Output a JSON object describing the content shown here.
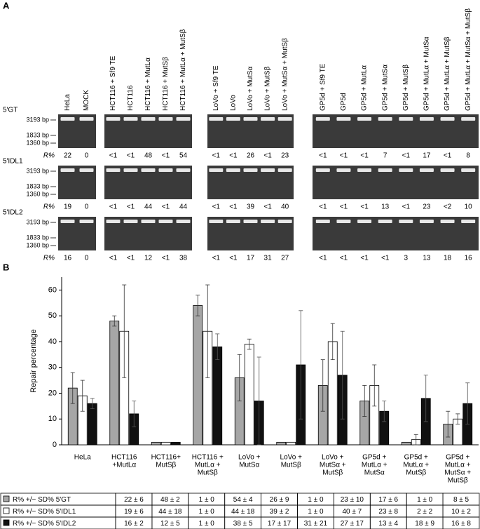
{
  "panel_a": {
    "label": "A",
    "lane_groups": [
      [
        "HeLa",
        "MOCK"
      ],
      [
        "HCT116 + Sf9 TE",
        "HCT116",
        "HCT116 + MutLα",
        "HCT116 + MutSβ",
        "HCT116 + MutLα + MutSβ"
      ],
      [
        "LoVo + Sf9 TE",
        "LoVo",
        "LoVo + MutSα",
        "LoVo + MutSβ",
        "LoVo + MutSα + MutSβ"
      ],
      [
        "GP5d + Sf9 TE",
        "GP5d",
        "GP5d + MutLα",
        "GP5d + MutSα",
        "GP5d + MutSβ",
        "GP5d + MutLα + MutSα",
        "GP5d + MutLα + MutSβ",
        "GP5d + MutLα + MutSα + MutSβ"
      ]
    ],
    "rows": [
      {
        "label": "5′GT",
        "markers": [
          "3193 bp",
          "1833 bp",
          "1360 bp"
        ],
        "r_label": "R%",
        "values": [
          [
            "22",
            "0"
          ],
          [
            "<1",
            "<1",
            "48",
            "<1",
            "54"
          ],
          [
            "<1",
            "<1",
            "26",
            "<1",
            "23"
          ],
          [
            "<1",
            "<1",
            "<1",
            "7",
            "<1",
            "17",
            "<1",
            "8"
          ]
        ]
      },
      {
        "label": "5′IDL1",
        "markers": [
          "3193 bp",
          "1833 bp",
          "1360 bp"
        ],
        "r_label": "R%",
        "values": [
          [
            "19",
            "0"
          ],
          [
            "<1",
            "<1",
            "44",
            "<1",
            "44"
          ],
          [
            "<1",
            "<1",
            "39",
            "<1",
            "40"
          ],
          [
            "<1",
            "<1",
            "<1",
            "13",
            "<1",
            "23",
            "<2",
            "10"
          ]
        ]
      },
      {
        "label": "5′IDL2",
        "markers": [
          "3193 bp",
          "1833 bp",
          "1360 bp"
        ],
        "r_label": "R%",
        "values": [
          [
            "16",
            "0"
          ],
          [
            "<1",
            "<1",
            "12",
            "<1",
            "38"
          ],
          [
            "<1",
            "<1",
            "17",
            "31",
            "27"
          ],
          [
            "<1",
            "<1",
            "<1",
            "<1",
            "3",
            "13",
            "18",
            "16"
          ]
        ]
      }
    ]
  },
  "panel_b_label": "B",
  "chart_data": {
    "type": "bar",
    "ylabel": "Repair percentage",
    "categories": [
      [
        "HeLa"
      ],
      [
        "HCT116",
        "+MutLα"
      ],
      [
        "HCT116+",
        "MutSβ"
      ],
      [
        "HCT116 +",
        "MutLα +",
        "MutSβ"
      ],
      [
        "LoVo +",
        "MutSα"
      ],
      [
        "LoVo +",
        "MutSβ"
      ],
      [
        "LoVo +",
        "MutSα +",
        "MutSβ"
      ],
      [
        "GP5d +",
        "MutLα +",
        "MutSα"
      ],
      [
        "GP5d +",
        "MutLα +",
        "MutSβ"
      ],
      [
        "GP5d +",
        "MutLα +",
        "MutSα +",
        "MutSβ"
      ]
    ],
    "series": [
      {
        "name": "R% +/− SD% 5′GT",
        "color": "#a6a6a6",
        "values": [
          22,
          48,
          1,
          54,
          26,
          1,
          23,
          17,
          1,
          8
        ],
        "errors": [
          6,
          2,
          0,
          4,
          9,
          0,
          10,
          6,
          0,
          5
        ]
      },
      {
        "name": "R% +/− SD% 5′IDL1",
        "color": "#ffffff",
        "values": [
          19,
          44,
          1,
          44,
          39,
          1,
          40,
          23,
          2,
          10
        ],
        "errors": [
          6,
          18,
          0,
          18,
          2,
          0,
          7,
          8,
          2,
          2
        ]
      },
      {
        "name": "R% +/− SD% 5′IDL2",
        "color": "#111111",
        "values": [
          16,
          12,
          1,
          38,
          17,
          31,
          27,
          13,
          18,
          16
        ],
        "errors": [
          2,
          5,
          0,
          5,
          17,
          21,
          17,
          4,
          9,
          8
        ]
      }
    ],
    "ylim": [
      0,
      65
    ],
    "yticks": [
      0,
      10,
      20,
      30,
      40,
      50,
      60
    ]
  },
  "table": [
    [
      "22 ± 6",
      "48 ± 2",
      "1 ± 0",
      "54 ± 4",
      "26 ± 9",
      "1 ± 0",
      "23 ± 10",
      "17 ± 6",
      "1 ± 0",
      "8 ± 5"
    ],
    [
      "19 ± 6",
      "44 ± 18",
      "1 ± 0",
      "44 ± 18",
      "39 ± 2",
      "1 ± 0",
      "40 ± 7",
      "23 ± 8",
      "2 ± 2",
      "10 ± 2"
    ],
    [
      "16 ± 2",
      "12 ± 5",
      "1 ± 0",
      "38 ± 5",
      "17 ± 17",
      "31 ± 21",
      "27 ± 17",
      "13 ± 4",
      "18 ± 9",
      "16 ± 8"
    ]
  ]
}
